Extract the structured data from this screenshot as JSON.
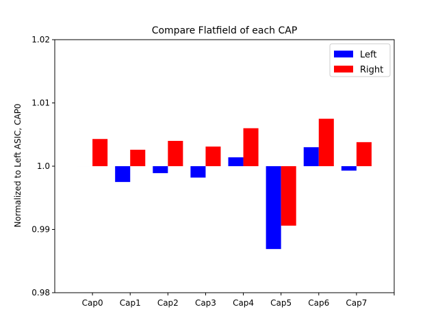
{
  "chart_data": {
    "type": "bar",
    "title": "Compare Flatfield of each CAP",
    "xlabel": "",
    "ylabel": "Normalized to Left ASIC, CAP0",
    "ylim": [
      0.98,
      1.02
    ],
    "baseline": 1.0,
    "yticks": [
      0.98,
      0.99,
      1.0,
      1.01,
      1.02
    ],
    "ytick_labels": [
      "0.98",
      "0.99",
      "1.0",
      "1.01",
      "1.02"
    ],
    "categories": [
      "Cap0",
      "Cap1",
      "Cap2",
      "Cap3",
      "Cap4",
      "Cap5",
      "Cap6",
      "Cap7"
    ],
    "legend_position": "top-right",
    "series": [
      {
        "name": "Left",
        "color": "#0000ff",
        "values": [
          1.0,
          0.9975,
          0.9989,
          0.9982,
          1.0014,
          0.9869,
          1.003,
          0.9993
        ]
      },
      {
        "name": "Right",
        "color": "#ff0000",
        "values": [
          1.0043,
          1.0026,
          1.004,
          1.0031,
          1.006,
          0.9906,
          1.0075,
          1.0038
        ]
      }
    ]
  }
}
